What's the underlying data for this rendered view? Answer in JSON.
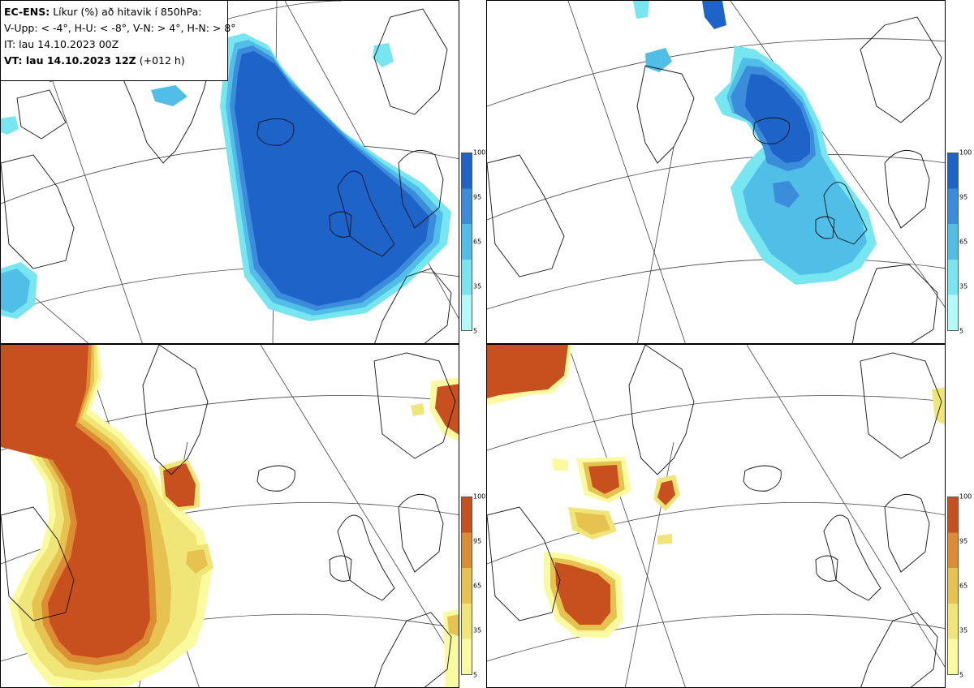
{
  "header": {
    "model": "EC-ENS:",
    "title": "Líkur (%) að hitavik í 850hPa:",
    "legend": "V-Upp: < -4°, H-U: < -8°, V-N: > 4°, H-N: > 8°",
    "init_time": "IT: lau 14.10.2023 00Z",
    "valid_label": "VT: lau 14.10.2023 12Z",
    "lead": "(+012 h)"
  },
  "panels": [
    {
      "id": "V-Upp",
      "scheme": "cold",
      "threshold": "< -4°"
    },
    {
      "id": "H-U",
      "scheme": "cold",
      "threshold": "< -8°"
    },
    {
      "id": "V-N",
      "scheme": "warm",
      "threshold": "> 4°"
    },
    {
      "id": "H-N",
      "scheme": "warm",
      "threshold": "> 8°"
    }
  ],
  "colorbar": {
    "ticks": [
      "100",
      "95",
      "65",
      "35",
      "5"
    ],
    "cold_colors": [
      "#1e64c8",
      "#3c8cdc",
      "#50bee6",
      "#78e6f0",
      "#b4fafa"
    ],
    "warm_colors": [
      "#c8501e",
      "#dc8c32",
      "#e6c350",
      "#f0e678",
      "#fafaa0"
    ]
  }
}
